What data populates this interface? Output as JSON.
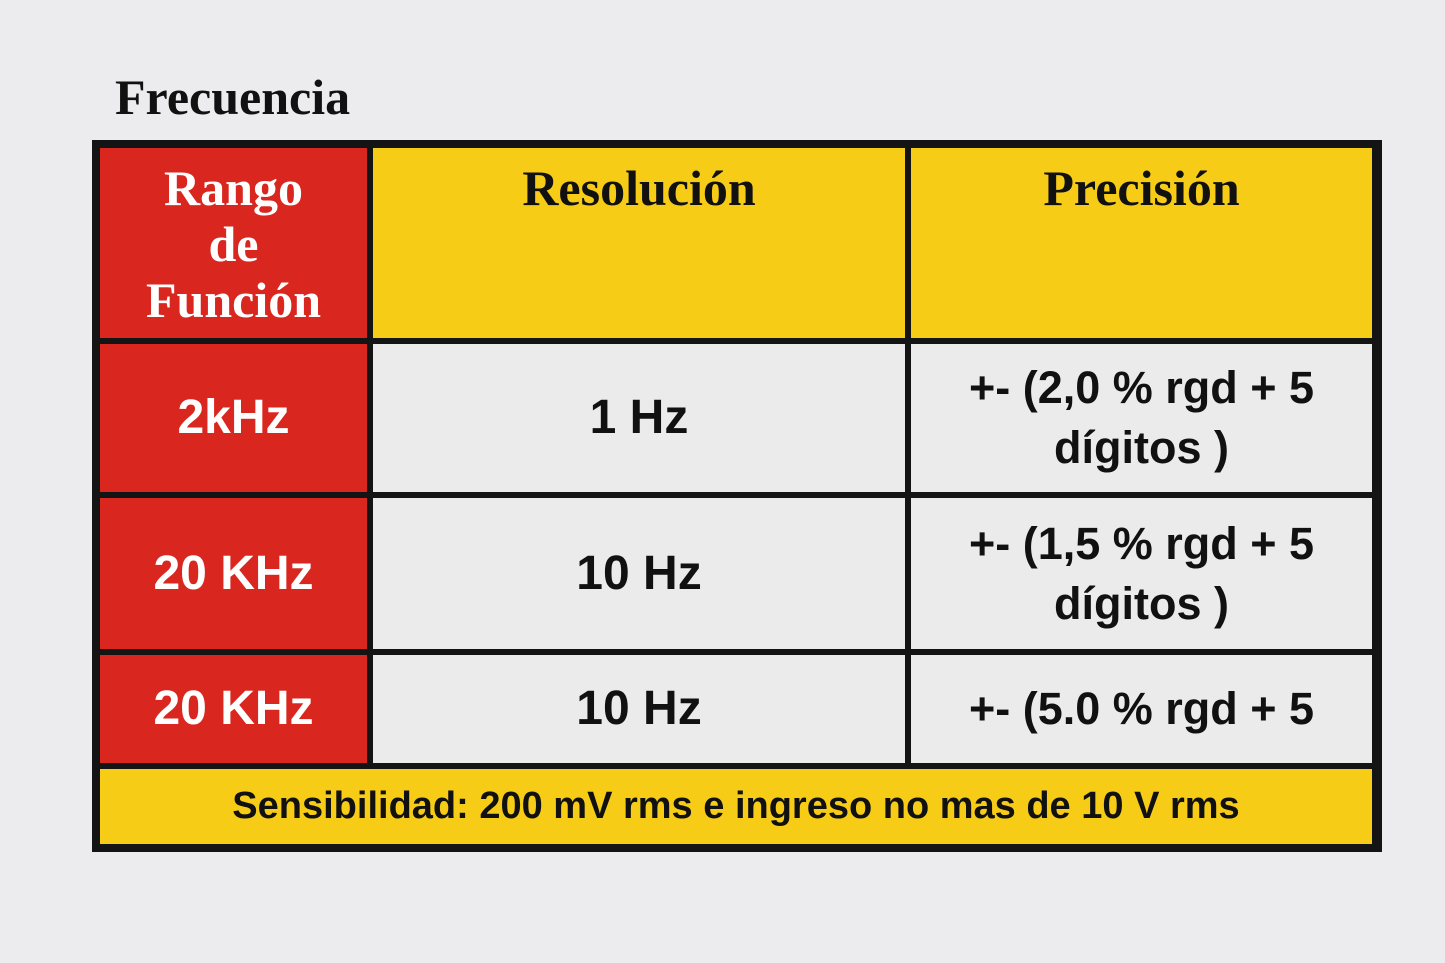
{
  "title": "Frecuencia",
  "table": {
    "header": [
      "Rango de Función",
      "Resolución",
      "Precisión"
    ],
    "rows": [
      [
        "2kHz",
        "1 Hz",
        "+- (2,0 % rgd + 5 dígitos )"
      ],
      [
        "20 KHz",
        "10 Hz",
        "+- (1,5 % rgd + 5 dígitos )"
      ],
      [
        "20 KHz",
        "10 Hz",
        "+- (5.0 % rgd + 5"
      ]
    ],
    "footer": "Sensibilidad: 200 mV rms e ingreso no mas de 10 V rms"
  }
}
